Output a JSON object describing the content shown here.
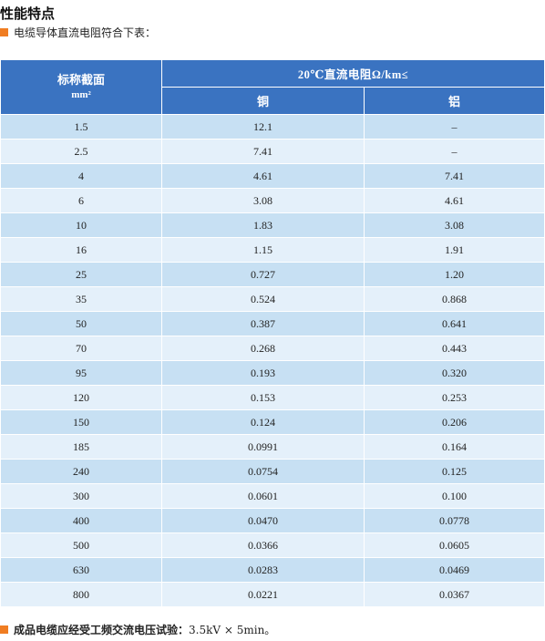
{
  "section_title": "性能特点",
  "intro_text": "电缆导体直流电阻符合下表：",
  "table": {
    "header_main": "20℃直流电阻Ω/km≤",
    "header_left_line1": "标称截面",
    "header_left_line2": "mm²",
    "header_copper": "铜",
    "header_aluminum": "铝",
    "rows": [
      {
        "section": "1.5",
        "copper": "12.1",
        "aluminum": "–"
      },
      {
        "section": "2.5",
        "copper": "7.41",
        "aluminum": "–"
      },
      {
        "section": "4",
        "copper": "4.61",
        "aluminum": "7.41"
      },
      {
        "section": "6",
        "copper": "3.08",
        "aluminum": "4.61"
      },
      {
        "section": "10",
        "copper": "1.83",
        "aluminum": "3.08"
      },
      {
        "section": "16",
        "copper": "1.15",
        "aluminum": "1.91"
      },
      {
        "section": "25",
        "copper": "0.727",
        "aluminum": "1.20"
      },
      {
        "section": "35",
        "copper": "0.524",
        "aluminum": "0.868"
      },
      {
        "section": "50",
        "copper": "0.387",
        "aluminum": "0.641"
      },
      {
        "section": "70",
        "copper": "0.268",
        "aluminum": "0.443"
      },
      {
        "section": "95",
        "copper": "0.193",
        "aluminum": "0.320"
      },
      {
        "section": "120",
        "copper": "0.153",
        "aluminum": "0.253"
      },
      {
        "section": "150",
        "copper": "0.124",
        "aluminum": "0.206"
      },
      {
        "section": "185",
        "copper": "0.0991",
        "aluminum": "0.164"
      },
      {
        "section": "240",
        "copper": "0.0754",
        "aluminum": "0.125"
      },
      {
        "section": "300",
        "copper": "0.0601",
        "aluminum": "0.100"
      },
      {
        "section": "400",
        "copper": "0.0470",
        "aluminum": "0.0778"
      },
      {
        "section": "500",
        "copper": "0.0366",
        "aluminum": "0.0605"
      },
      {
        "section": "630",
        "copper": "0.0283",
        "aluminum": "0.0469"
      },
      {
        "section": "800",
        "copper": "0.0221",
        "aluminum": "0.0367"
      }
    ]
  },
  "footer_label": "成品电缆应经受工频交流电压试验：",
  "footer_value": "3.5kV × 5min。",
  "colors": {
    "header_bg": "#3a73c1",
    "row_dark": "#c7e0f3",
    "row_light": "#e4f0fa",
    "bullet": "#f07d22"
  }
}
